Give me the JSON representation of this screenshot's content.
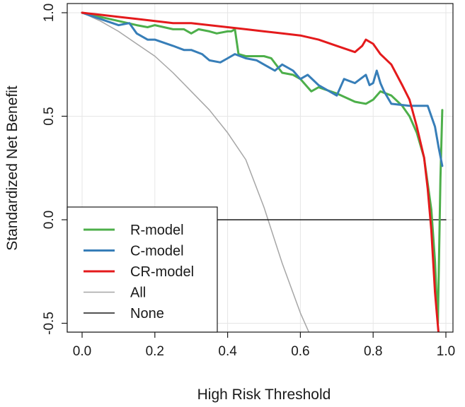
{
  "chart_data": {
    "type": "line",
    "title": "",
    "xlabel": "High Risk Threshold",
    "ylabel": "Standardized Net Benefit",
    "xlim": [
      0,
      1
    ],
    "ylim": [
      -0.55,
      1.0
    ],
    "xticks": [
      "0.0",
      "0.2",
      "0.4",
      "0.6",
      "0.8",
      "1.0"
    ],
    "yticks": [
      "-0.5",
      "0.0",
      "0.5",
      "1.0"
    ],
    "grid": true,
    "legend_position": "bottom-left",
    "series": [
      {
        "name": "All",
        "color": "#a6a6a6",
        "width": 1.5,
        "x": [
          0,
          0.05,
          0.1,
          0.15,
          0.2,
          0.25,
          0.3,
          0.35,
          0.4,
          0.45,
          0.5,
          0.55,
          0.6,
          0.625
        ],
        "y": [
          1.0,
          0.96,
          0.91,
          0.85,
          0.79,
          0.71,
          0.62,
          0.53,
          0.42,
          0.29,
          0.06,
          -0.21,
          -0.45,
          -0.55
        ]
      },
      {
        "name": "None",
        "color": "#1a1a1a",
        "width": 1.5,
        "x": [
          0,
          1
        ],
        "y": [
          0,
          0
        ]
      },
      {
        "name": "R-model",
        "color": "#4daf4a",
        "width": 3,
        "x": [
          0,
          0.05,
          0.1,
          0.15,
          0.18,
          0.2,
          0.25,
          0.28,
          0.3,
          0.32,
          0.35,
          0.37,
          0.4,
          0.41,
          0.42,
          0.43,
          0.45,
          0.5,
          0.52,
          0.55,
          0.58,
          0.6,
          0.62,
          0.63,
          0.65,
          0.7,
          0.75,
          0.78,
          0.8,
          0.82,
          0.85,
          0.88,
          0.9,
          0.92,
          0.94,
          0.96,
          0.97,
          0.975,
          0.978,
          0.98,
          0.985,
          0.99
        ],
        "y": [
          1.0,
          0.98,
          0.96,
          0.94,
          0.93,
          0.94,
          0.92,
          0.92,
          0.9,
          0.92,
          0.91,
          0.9,
          0.91,
          0.91,
          0.92,
          0.8,
          0.79,
          0.79,
          0.78,
          0.71,
          0.7,
          0.68,
          0.64,
          0.62,
          0.64,
          0.61,
          0.57,
          0.56,
          0.58,
          0.62,
          0.6,
          0.55,
          0.5,
          0.42,
          0.3,
          0.05,
          -0.2,
          -0.4,
          -0.5,
          -0.3,
          0.2,
          0.53
        ]
      },
      {
        "name": "C-model",
        "color": "#377eb8",
        "width": 3,
        "x": [
          0,
          0.05,
          0.1,
          0.13,
          0.15,
          0.18,
          0.2,
          0.25,
          0.28,
          0.3,
          0.33,
          0.35,
          0.38,
          0.4,
          0.42,
          0.45,
          0.48,
          0.5,
          0.53,
          0.55,
          0.58,
          0.6,
          0.62,
          0.65,
          0.68,
          0.7,
          0.72,
          0.75,
          0.78,
          0.79,
          0.8,
          0.81,
          0.82,
          0.83,
          0.85,
          0.9,
          0.95,
          0.97,
          0.98,
          0.99
        ],
        "y": [
          1.0,
          0.97,
          0.94,
          0.95,
          0.9,
          0.87,
          0.87,
          0.84,
          0.82,
          0.82,
          0.8,
          0.77,
          0.76,
          0.78,
          0.8,
          0.78,
          0.77,
          0.75,
          0.72,
          0.75,
          0.72,
          0.68,
          0.7,
          0.65,
          0.62,
          0.6,
          0.68,
          0.66,
          0.7,
          0.65,
          0.66,
          0.72,
          0.66,
          0.62,
          0.56,
          0.55,
          0.55,
          0.45,
          0.35,
          0.26
        ]
      },
      {
        "name": "CR-model",
        "color": "#e41a1c",
        "width": 3,
        "x": [
          0,
          0.05,
          0.1,
          0.15,
          0.2,
          0.25,
          0.3,
          0.35,
          0.4,
          0.45,
          0.5,
          0.55,
          0.6,
          0.65,
          0.7,
          0.75,
          0.77,
          0.78,
          0.8,
          0.82,
          0.85,
          0.88,
          0.9,
          0.92,
          0.94,
          0.95,
          0.96,
          0.965,
          0.97,
          0.975,
          0.98
        ],
        "y": [
          1.0,
          0.99,
          0.98,
          0.97,
          0.96,
          0.95,
          0.95,
          0.94,
          0.93,
          0.92,
          0.91,
          0.9,
          0.89,
          0.87,
          0.84,
          0.81,
          0.84,
          0.87,
          0.85,
          0.8,
          0.75,
          0.65,
          0.58,
          0.45,
          0.3,
          0.15,
          -0.05,
          -0.2,
          -0.35,
          -0.45,
          -0.55
        ]
      }
    ],
    "legend": [
      "R-model",
      "C-model",
      "CR-model",
      "All",
      "None"
    ]
  }
}
